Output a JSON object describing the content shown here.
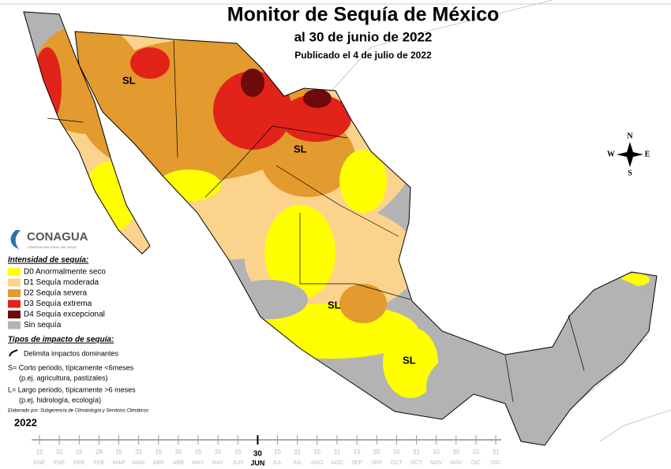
{
  "header": {
    "title": "Monitor de Sequía de México",
    "subtitle": "al 30 de junio de 2022",
    "published": "Publicado el 4 de julio de 2022"
  },
  "logo": {
    "name": "CONAGUA",
    "tagline": "COMISIÓN NACIONAL DEL AGUA"
  },
  "legend": {
    "title": "Intensidad de sequía:",
    "items": [
      {
        "label": "D0 Anormalmente seco",
        "color": "#ffff00"
      },
      {
        "label": "D1 Sequía moderada",
        "color": "#fcd38c"
      },
      {
        "label": "D2 Sequía severa",
        "color": "#e39a2e"
      },
      {
        "label": "D3 Sequía extrema",
        "color": "#e2231a"
      },
      {
        "label": "D4 Sequía excepcional",
        "color": "#6e0a0a"
      },
      {
        "label": "Sin sequía",
        "color": "#b3b3b3"
      }
    ]
  },
  "impact": {
    "title": "Tipos de impacto de sequía:",
    "line_label": "Delimita impactos dominantes",
    "items": [
      "S= Corto periodo, típicamente <6meses",
      "(p.ej. agricultura, pastizales)",
      "L= Largo periodo, típicamente >6 meses",
      "(p.ej. hidrología, ecología)"
    ]
  },
  "credit": "Elaborado por: Subgerencia de Climatología y Servicios Climáticos",
  "map_labels": [
    "SL",
    "SL",
    "SL",
    "SL"
  ],
  "compass": {
    "n": "N",
    "s": "S",
    "e": "E",
    "w": "W"
  },
  "timeline": {
    "year": "2022",
    "entries": [
      {
        "day": "15",
        "month": "ENE"
      },
      {
        "day": "31",
        "month": "ENE"
      },
      {
        "day": "15",
        "month": "FEB"
      },
      {
        "day": "28",
        "month": "FEB"
      },
      {
        "day": "15",
        "month": "MAR"
      },
      {
        "day": "31",
        "month": "MAR"
      },
      {
        "day": "15",
        "month": "ABR"
      },
      {
        "day": "30",
        "month": "ABR"
      },
      {
        "day": "15",
        "month": "MAY"
      },
      {
        "day": "31",
        "month": "MAY"
      },
      {
        "day": "15",
        "month": "JUN"
      },
      {
        "day": "30",
        "month": "JUN",
        "current": true
      },
      {
        "day": "15",
        "month": "JUL"
      },
      {
        "day": "31",
        "month": "JUL"
      },
      {
        "day": "15",
        "month": "AGO"
      },
      {
        "day": "31",
        "month": "AGO"
      },
      {
        "day": "15",
        "month": "SEP"
      },
      {
        "day": "30",
        "month": "SEP"
      },
      {
        "day": "15",
        "month": "OCT"
      },
      {
        "day": "31",
        "month": "OCT"
      },
      {
        "day": "15",
        "month": "NOV"
      },
      {
        "day": "30",
        "month": "NOV"
      },
      {
        "day": "15",
        "month": "DIC"
      },
      {
        "day": "31",
        "month": "DIC"
      }
    ]
  }
}
